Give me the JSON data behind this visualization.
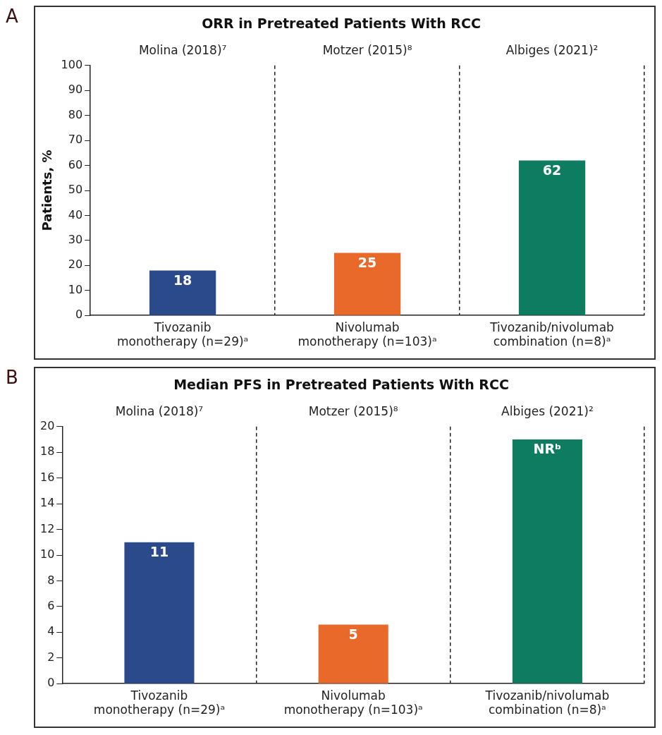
{
  "chart_data": [
    {
      "type": "bar",
      "title": "ORR in Pretreated Patients With RCC",
      "ylabel": "Patients, %",
      "categories": [
        "Tivozanib monotherapy (n=29)ᵃ",
        "Nivolumab monotherapy (n=103)ᵃ",
        "Tivozanib/nivolumab combination (n=8)ᵃ"
      ],
      "values": [
        18,
        25,
        62
      ],
      "colors": [
        "#2b4a8b",
        "#e8692a",
        "#0e7c60"
      ],
      "ylim": [
        0,
        100
      ],
      "yticks": [
        0,
        10,
        20,
        30,
        40,
        50,
        60,
        70,
        80,
        90,
        100
      ],
      "data_labels": true,
      "grid": "x",
      "legend": false,
      "annotations": [
        "A",
        "Molina (2018)⁷",
        "Motzer (2015)⁸",
        "Albiges (2021)²"
      ]
    },
    {
      "type": "bar",
      "title": "Median PFS in Pretreated Patients With RCC",
      "categories": [
        "Tivozanib monotherapy (n=29)ᵃ",
        "Nivolumab monotherapy (n=103)ᵃ",
        "Tivozanib/nivolumab combination (n=8)ᵃ"
      ],
      "values": [
        11,
        4.6,
        19
      ],
      "value_labels": [
        "11",
        "5",
        "NRᵇ"
      ],
      "colors": [
        "#2b4a8b",
        "#e8692a",
        "#0e7c60"
      ],
      "ylim": [
        0,
        20
      ],
      "yticks": [
        0,
        2,
        4,
        6,
        8,
        10,
        12,
        14,
        16,
        18,
        20
      ],
      "grid": "x",
      "legend": false,
      "annotations": [
        "B",
        "Molina (2018)⁷",
        "Motzer (2015)⁸",
        "Albiges (2021)²"
      ]
    }
  ]
}
